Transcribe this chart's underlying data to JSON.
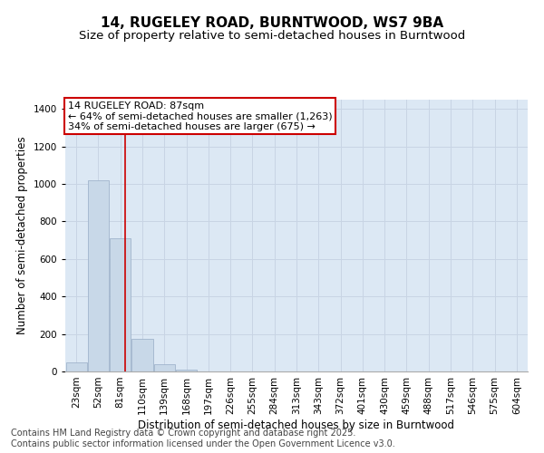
{
  "title_line1": "14, RUGELEY ROAD, BURNTWOOD, WS7 9BA",
  "title_line2": "Size of property relative to semi-detached houses in Burntwood",
  "xlabel": "Distribution of semi-detached houses by size in Burntwood",
  "ylabel": "Number of semi-detached properties",
  "categories": [
    "23sqm",
    "52sqm",
    "81sqm",
    "110sqm",
    "139sqm",
    "168sqm",
    "197sqm",
    "226sqm",
    "255sqm",
    "284sqm",
    "313sqm",
    "343sqm",
    "372sqm",
    "401sqm",
    "430sqm",
    "459sqm",
    "488sqm",
    "517sqm",
    "546sqm",
    "575sqm",
    "604sqm"
  ],
  "values": [
    50,
    1020,
    710,
    175,
    40,
    10,
    0,
    0,
    0,
    0,
    0,
    0,
    0,
    0,
    0,
    0,
    0,
    0,
    0,
    0,
    0
  ],
  "bar_color": "#c8d8e8",
  "bar_edge_color": "#a0b4cc",
  "annotation_line1": "14 RUGELEY ROAD: 87sqm",
  "annotation_line2": "← 64% of semi-detached houses are smaller (1,263)",
  "annotation_line3": "34% of semi-detached houses are larger (675) →",
  "annotation_box_color": "#ffffff",
  "annotation_box_edge": "#cc0000",
  "red_line_color": "#cc0000",
  "red_line_bar_index": 2,
  "ylim": [
    0,
    1450
  ],
  "yticks": [
    0,
    200,
    400,
    600,
    800,
    1000,
    1200,
    1400
  ],
  "grid_color": "#c8d4e4",
  "background_color": "#dce8f4",
  "footer_line1": "Contains HM Land Registry data © Crown copyright and database right 2025.",
  "footer_line2": "Contains public sector information licensed under the Open Government Licence v3.0.",
  "title_fontsize": 11,
  "subtitle_fontsize": 9.5,
  "axis_label_fontsize": 8.5,
  "tick_fontsize": 7.5,
  "annotation_fontsize": 8,
  "footer_fontsize": 7
}
